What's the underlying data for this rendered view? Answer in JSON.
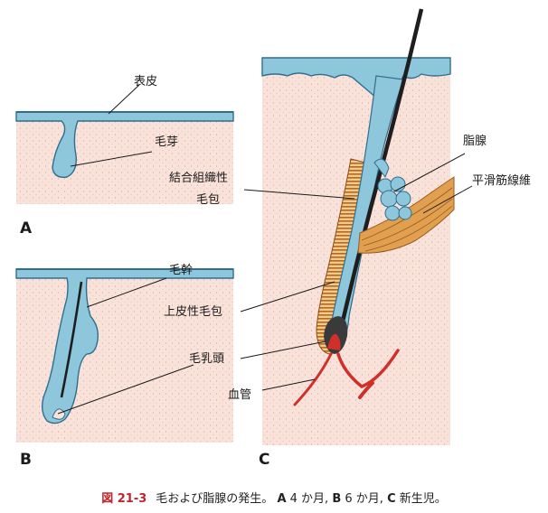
{
  "panels": {
    "a": "A",
    "b": "B",
    "c": "C"
  },
  "labels": {
    "epidermis": "表皮",
    "hair_bud": "毛芽",
    "hair_shaft": "毛幹",
    "dermal_papilla": "毛乳頭",
    "ct_follicle_line1": "結合組織性",
    "ct_follicle_line2": "毛包",
    "epithelial_follicle": "上皮性毛包",
    "sebaceous_gland": "脂腺",
    "smooth_muscle": "平滑筋線維",
    "blood_vessel": "血管"
  },
  "caption": {
    "figure": "図 21-3",
    "text": "毛および脂腺の発生。",
    "a": "A",
    "a_text": "4 か月,",
    "b": "B",
    "b_text": "6 か月,",
    "c": "C",
    "c_text": "新生児。"
  },
  "colors": {
    "dermis": "#f8e2d9",
    "epidermis": "#8ec6dc",
    "epidermis_edge": "#2f6f8e",
    "hair": "#1e1e1e",
    "muscle": "#e0a050",
    "vessel": "#d0302a",
    "caption_accent": "#c2242c"
  }
}
